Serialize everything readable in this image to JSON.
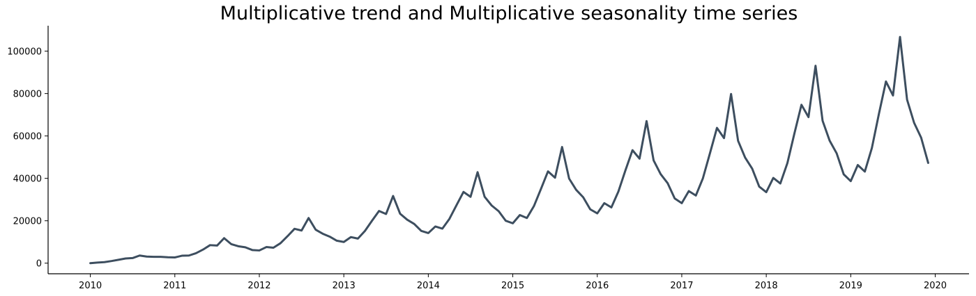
{
  "chart_data": {
    "type": "line",
    "title": "Multiplicative trend and Multiplicative seasonality time series",
    "xlabel": "",
    "ylabel": "",
    "xlim": [
      2009.5,
      2020.4
    ],
    "ylim": [
      -5000,
      112000
    ],
    "x_ticks": [
      "2010",
      "2011",
      "2012",
      "2013",
      "2014",
      "2015",
      "2016",
      "2017",
      "2018",
      "2019",
      "2020"
    ],
    "y_ticks": [
      "0",
      "20000",
      "40000",
      "60000",
      "80000",
      "100000"
    ],
    "grid": false,
    "legend": "none",
    "series": [
      {
        "color": "#3d4e5f",
        "x_start": "2010-01",
        "frequency": "monthly",
        "values": [
          0,
          300,
          500,
          1000,
          1600,
          2200,
          2400,
          3600,
          3100,
          3000,
          3000,
          2800,
          2700,
          3500,
          3600,
          4700,
          6400,
          8500,
          8300,
          11800,
          9000,
          8000,
          7500,
          6200,
          6000,
          7600,
          7300,
          9400,
          12700,
          16200,
          15400,
          21300,
          15800,
          13900,
          12500,
          10600,
          10000,
          12300,
          11600,
          15200,
          20000,
          24600,
          23200,
          31700,
          23300,
          20500,
          18500,
          15200,
          14200,
          17300,
          16300,
          20900,
          27300,
          33600,
          31300,
          42900,
          31300,
          27200,
          24500,
          20000,
          18800,
          22700,
          21300,
          26900,
          35000,
          43300,
          40300,
          54800,
          39900,
          34600,
          31100,
          25400,
          23500,
          28300,
          26300,
          33800,
          43800,
          53300,
          49300,
          67000,
          48500,
          42000,
          37700,
          30500,
          28300,
          34000,
          31900,
          40000,
          51800,
          63800,
          59000,
          79800,
          57700,
          49800,
          44600,
          36100,
          33500,
          40200,
          37600,
          47200,
          61200,
          74700,
          68900,
          93100,
          67200,
          57800,
          51800,
          41900,
          38700,
          46300,
          43200,
          54300,
          70400,
          85700,
          79100,
          106700,
          77100,
          66200,
          59200,
          47300
        ]
      }
    ]
  }
}
